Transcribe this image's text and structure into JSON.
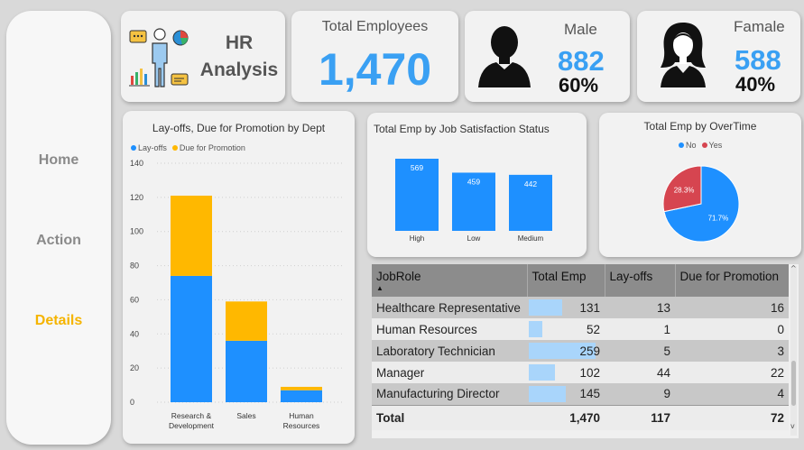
{
  "nav": {
    "home": "Home",
    "action": "Action",
    "details": "Details"
  },
  "header": {
    "title_line1": "HR",
    "title_line2": "Analysis"
  },
  "kpi": {
    "total_label": "Total Employees",
    "total_value": "1,470",
    "male_label": "Male",
    "male_value": "882",
    "male_pct": "60%",
    "female_label": "Famale",
    "female_value": "588",
    "female_pct": "40%"
  },
  "colors": {
    "blue": "#1e90ff",
    "gold": "#ffb800",
    "red": "#d64550"
  },
  "chart_data": [
    {
      "type": "bar",
      "stacked": true,
      "title": "Lay-offs, Due for Promotion by Dept",
      "categories": [
        "Research & Development",
        "Sales",
        "Human Resources"
      ],
      "series": [
        {
          "name": "Lay-offs",
          "values": [
            74,
            36,
            7
          ]
        },
        {
          "name": "Due for Promotion",
          "values": [
            47,
            23,
            2
          ]
        }
      ],
      "ylim": [
        0,
        140
      ],
      "yticks": [
        "0",
        "20",
        "40",
        "60",
        "80",
        "100",
        "120",
        "140"
      ],
      "xlabels": [
        [
          "Research &",
          "Development"
        ],
        [
          "Sales"
        ],
        [
          "Human",
          "Resources"
        ]
      ]
    },
    {
      "type": "bar",
      "title": "Total Emp by Job Satisfaction Status",
      "categories": [
        "High",
        "Low",
        "Medium"
      ],
      "values": [
        569,
        459,
        442
      ],
      "ylim": [
        0,
        600
      ]
    },
    {
      "type": "pie",
      "title": "Total Emp by OverTime",
      "categories": [
        "No",
        "Yes"
      ],
      "values": [
        71.7,
        28.3
      ],
      "labels": [
        "71.7%",
        "28.3%"
      ]
    }
  ],
  "table": {
    "columns": [
      "JobRole",
      "Total Emp",
      "Lay-offs",
      "Due for Promotion"
    ],
    "rows": [
      {
        "role": "Healthcare Representative",
        "total": "131",
        "total_num": 131,
        "layoffs": "13",
        "promo": "16"
      },
      {
        "role": "Human Resources",
        "total": "52",
        "total_num": 52,
        "layoffs": "1",
        "promo": "0"
      },
      {
        "role": "Laboratory Technician",
        "total": "259",
        "total_num": 259,
        "layoffs": "5",
        "promo": "3"
      },
      {
        "role": "Manager",
        "total": "102",
        "total_num": 102,
        "layoffs": "44",
        "promo": "22"
      },
      {
        "role": "Manufacturing Director",
        "total": "145",
        "total_num": 145,
        "layoffs": "9",
        "promo": "4"
      }
    ],
    "total_row": {
      "label": "Total",
      "total": "1,470",
      "layoffs": "117",
      "promo": "72"
    }
  }
}
